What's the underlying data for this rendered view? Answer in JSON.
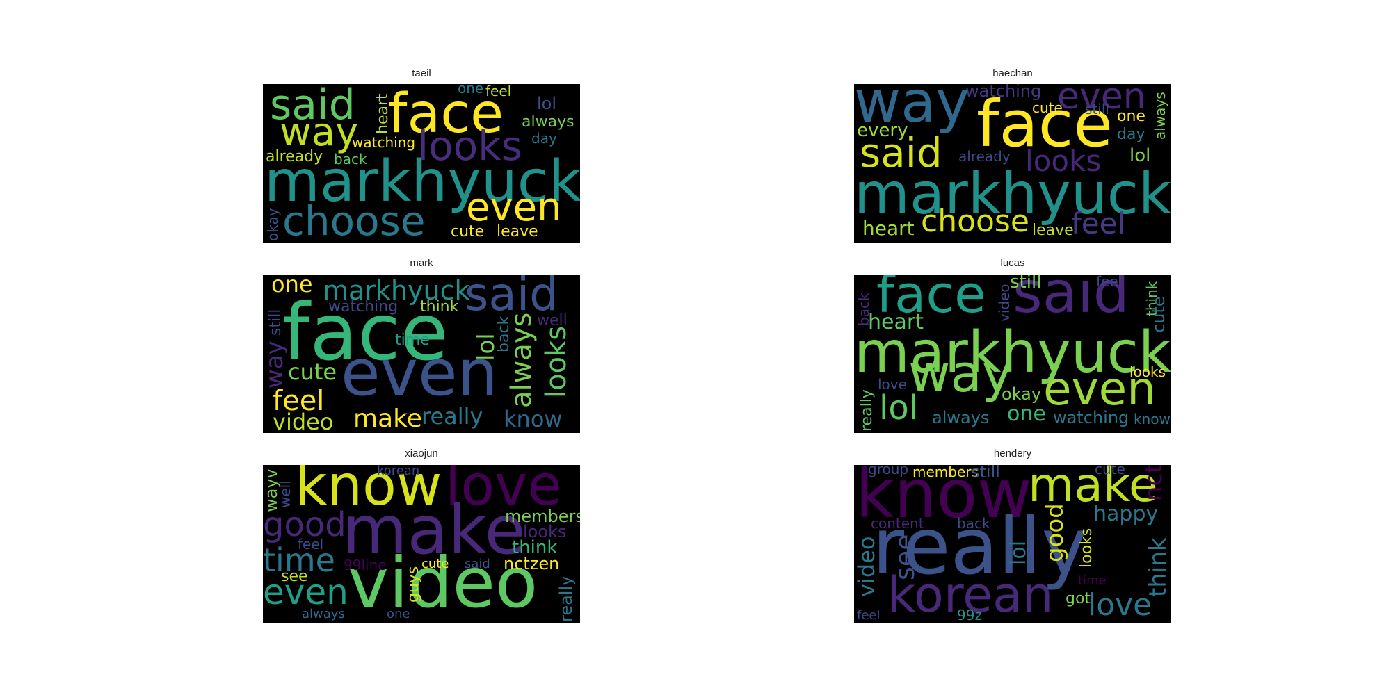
{
  "clouds": [
    {
      "title": "taeil",
      "words": [
        {
          "text": "markhyuck",
          "color": "#21918c"
        },
        {
          "text": "face",
          "color": "#fde725"
        },
        {
          "text": "said",
          "color": "#5ec962"
        },
        {
          "text": "way",
          "color": "#c2df23"
        },
        {
          "text": "looks",
          "color": "#472d7b"
        },
        {
          "text": "choose",
          "color": "#2a788e"
        },
        {
          "text": "even",
          "color": "#fde725"
        },
        {
          "text": "heart",
          "color": "#c2df23"
        },
        {
          "text": "one",
          "color": "#2a788e"
        },
        {
          "text": "feel",
          "color": "#c2df23"
        },
        {
          "text": "lol",
          "color": "#3b528b"
        },
        {
          "text": "always",
          "color": "#7ad151"
        },
        {
          "text": "day",
          "color": "#2a788e"
        },
        {
          "text": "watching",
          "color": "#fde725"
        },
        {
          "text": "already",
          "color": "#c2df23"
        },
        {
          "text": "back",
          "color": "#5ec962"
        },
        {
          "text": "okay",
          "color": "#3b528b"
        },
        {
          "text": "cute",
          "color": "#fde725"
        },
        {
          "text": "leave",
          "color": "#fde725"
        }
      ]
    },
    {
      "title": "haechan",
      "words": [
        {
          "text": "way",
          "color": "#31688e"
        },
        {
          "text": "face",
          "color": "#fde725"
        },
        {
          "text": "even",
          "color": "#482878"
        },
        {
          "text": "watching",
          "color": "#443983"
        },
        {
          "text": "cute",
          "color": "#fde725"
        },
        {
          "text": "still",
          "color": "#3e4989"
        },
        {
          "text": "one",
          "color": "#fde725"
        },
        {
          "text": "always",
          "color": "#7ad151"
        },
        {
          "text": "every",
          "color": "#a0da39"
        },
        {
          "text": "said",
          "color": "#d8e219"
        },
        {
          "text": "already",
          "color": "#3e4989"
        },
        {
          "text": "looks",
          "color": "#482878"
        },
        {
          "text": "day",
          "color": "#2a788e"
        },
        {
          "text": "lol",
          "color": "#7ad151"
        },
        {
          "text": "markhyuck",
          "color": "#21918c"
        },
        {
          "text": "heart",
          "color": "#a0da39"
        },
        {
          "text": "choose",
          "color": "#d8e219"
        },
        {
          "text": "leave",
          "color": "#c2df23"
        },
        {
          "text": "feel",
          "color": "#443983"
        }
      ]
    },
    {
      "title": "mark",
      "words": [
        {
          "text": "face",
          "color": "#35b779"
        },
        {
          "text": "even",
          "color": "#3b528b"
        },
        {
          "text": "said",
          "color": "#3b528b"
        },
        {
          "text": "markhyuck",
          "color": "#21918c"
        },
        {
          "text": "one",
          "color": "#fde725"
        },
        {
          "text": "watching",
          "color": "#3e4989"
        },
        {
          "text": "think",
          "color": "#a0da39"
        },
        {
          "text": "still",
          "color": "#3e4989"
        },
        {
          "text": "way",
          "color": "#482878"
        },
        {
          "text": "time",
          "color": "#1f9e89"
        },
        {
          "text": "cute",
          "color": "#7ad151"
        },
        {
          "text": "lol",
          "color": "#7ad151"
        },
        {
          "text": "back",
          "color": "#2a788e"
        },
        {
          "text": "always",
          "color": "#7ad151"
        },
        {
          "text": "well",
          "color": "#482878"
        },
        {
          "text": "looks",
          "color": "#5ec962"
        },
        {
          "text": "feel",
          "color": "#fde725"
        },
        {
          "text": "video",
          "color": "#c2df23"
        },
        {
          "text": "make",
          "color": "#fde725"
        },
        {
          "text": "really",
          "color": "#2a788e"
        },
        {
          "text": "know",
          "color": "#31688e"
        }
      ]
    },
    {
      "title": "lucas",
      "words": [
        {
          "text": "markhyuck",
          "color": "#7ad151"
        },
        {
          "text": "face",
          "color": "#1f9e89"
        },
        {
          "text": "said",
          "color": "#482878"
        },
        {
          "text": "way",
          "color": "#7ad151"
        },
        {
          "text": "even",
          "color": "#a0da39"
        },
        {
          "text": "lol",
          "color": "#5ec962"
        },
        {
          "text": "heart",
          "color": "#5ec962"
        },
        {
          "text": "back",
          "color": "#482878"
        },
        {
          "text": "video",
          "color": "#3e4989"
        },
        {
          "text": "still",
          "color": "#7ad151"
        },
        {
          "text": "feel",
          "color": "#3e4989"
        },
        {
          "text": "think",
          "color": "#5ec962"
        },
        {
          "text": "cute",
          "color": "#2a788e"
        },
        {
          "text": "looks",
          "color": "#fde725"
        },
        {
          "text": "okay",
          "color": "#7ad151"
        },
        {
          "text": "love",
          "color": "#3e4989"
        },
        {
          "text": "really",
          "color": "#5ec962"
        },
        {
          "text": "always",
          "color": "#2a788e"
        },
        {
          "text": "one",
          "color": "#35b779"
        },
        {
          "text": "watching",
          "color": "#2a788e"
        },
        {
          "text": "know",
          "color": "#2a788e"
        }
      ]
    },
    {
      "title": "xiaojun",
      "words": [
        {
          "text": "know",
          "color": "#d8e219"
        },
        {
          "text": "love",
          "color": "#440154"
        },
        {
          "text": "make",
          "color": "#482878"
        },
        {
          "text": "video",
          "color": "#5ec962"
        },
        {
          "text": "korean",
          "color": "#3e4989"
        },
        {
          "text": "wayv",
          "color": "#7ad151"
        },
        {
          "text": "well",
          "color": "#3e4989"
        },
        {
          "text": "good",
          "color": "#482878"
        },
        {
          "text": "members",
          "color": "#7ad151"
        },
        {
          "text": "looks",
          "color": "#482878"
        },
        {
          "text": "feel",
          "color": "#3e4989"
        },
        {
          "text": "think",
          "color": "#35b779"
        },
        {
          "text": "time",
          "color": "#2a788e"
        },
        {
          "text": "99line",
          "color": "#440154"
        },
        {
          "text": "cute",
          "color": "#fde725"
        },
        {
          "text": "said",
          "color": "#3b528b"
        },
        {
          "text": "nctzen",
          "color": "#fde725"
        },
        {
          "text": "see",
          "color": "#c2df23"
        },
        {
          "text": "guys",
          "color": "#d8e219"
        },
        {
          "text": "even",
          "color": "#1f9e89"
        },
        {
          "text": "really",
          "color": "#2a788e"
        },
        {
          "text": "always",
          "color": "#31688e"
        },
        {
          "text": "one",
          "color": "#3b528b"
        }
      ]
    },
    {
      "title": "hendery",
      "words": [
        {
          "text": "know",
          "color": "#440154"
        },
        {
          "text": "really",
          "color": "#3b528b"
        },
        {
          "text": "make",
          "color": "#c2df23"
        },
        {
          "text": "korean",
          "color": "#482878"
        },
        {
          "text": "group",
          "color": "#3e4989"
        },
        {
          "text": "members",
          "color": "#fde725"
        },
        {
          "text": "still",
          "color": "#3b528b"
        },
        {
          "text": "cute",
          "color": "#3e4989"
        },
        {
          "text": "nct",
          "color": "#440154"
        },
        {
          "text": "happy",
          "color": "#2a788e"
        },
        {
          "text": "content",
          "color": "#482878"
        },
        {
          "text": "back",
          "color": "#3e4989"
        },
        {
          "text": "lol",
          "color": "#2a788e"
        },
        {
          "text": "good",
          "color": "#d8e219"
        },
        {
          "text": "looks",
          "color": "#d8e219"
        },
        {
          "text": "think",
          "color": "#2a788e"
        },
        {
          "text": "video",
          "color": "#2a788e"
        },
        {
          "text": "see",
          "color": "#3b528b"
        },
        {
          "text": "time",
          "color": "#440154"
        },
        {
          "text": "got",
          "color": "#7ad151"
        },
        {
          "text": "love",
          "color": "#2a788e"
        },
        {
          "text": "feel",
          "color": "#3e4989"
        },
        {
          "text": "99z",
          "color": "#21918c"
        }
      ]
    }
  ]
}
